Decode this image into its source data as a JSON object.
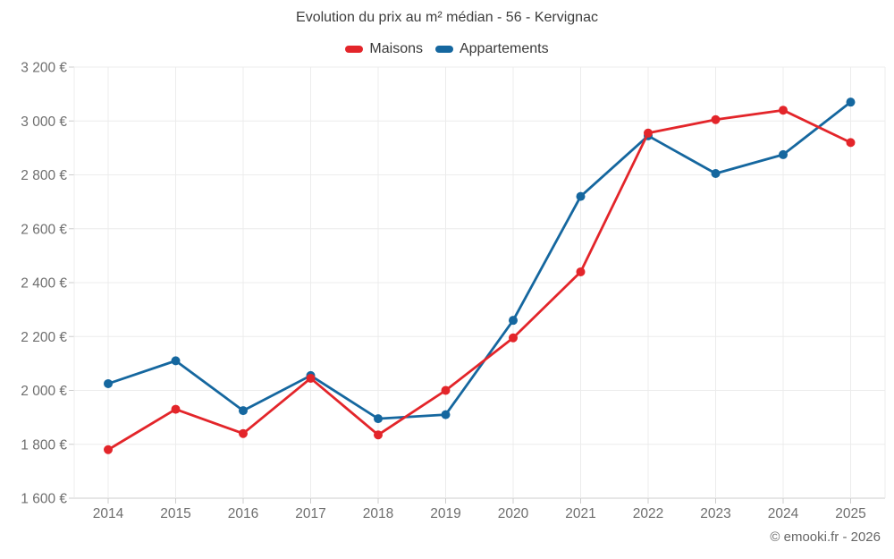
{
  "title": "Evolution du prix au m² médian - 56 - Kervignac",
  "legend": {
    "items": [
      {
        "label": "Maisons",
        "color": "#e3252a"
      },
      {
        "label": "Appartements",
        "color": "#15679f"
      }
    ]
  },
  "footer": {
    "credit": "© emooki.fr - 2026"
  },
  "colors": {
    "background": "#ffffff",
    "grid": "#ececec",
    "axis": "#cccccc",
    "tick_text": "#6e6e6e",
    "title_text": "#3e3e3e",
    "footer_text": "#666666",
    "maisons": "#e3252a",
    "appartements": "#15679f"
  },
  "chart_data": {
    "type": "line",
    "title": "Evolution du prix au m² médian - 56 - Kervignac",
    "categories": [
      "2014",
      "2015",
      "2016",
      "2017",
      "2018",
      "2019",
      "2020",
      "2021",
      "2022",
      "2023",
      "2024",
      "2025"
    ],
    "series": [
      {
        "name": "Maisons",
        "color": "#e3252a",
        "values": [
          1780,
          1930,
          1840,
          2045,
          1835,
          2000,
          2195,
          2440,
          2955,
          3005,
          3040,
          2920
        ]
      },
      {
        "name": "Appartements",
        "color": "#15679f",
        "values": [
          2025,
          2110,
          1925,
          2055,
          1895,
          1910,
          2260,
          2720,
          2945,
          2805,
          2875,
          3070
        ]
      }
    ],
    "xlabel": "",
    "ylabel": "",
    "ylim": [
      1600,
      3200
    ],
    "y_step": 200,
    "y_tick_suffix": " €",
    "y_tick_labels": [
      "1 600 €",
      "1 800 €",
      "2 000 €",
      "2 200 €",
      "2 400 €",
      "2 600 €",
      "2 800 €",
      "3 000 €",
      "3 200 €"
    ],
    "grid": true,
    "legend_position": "top"
  }
}
